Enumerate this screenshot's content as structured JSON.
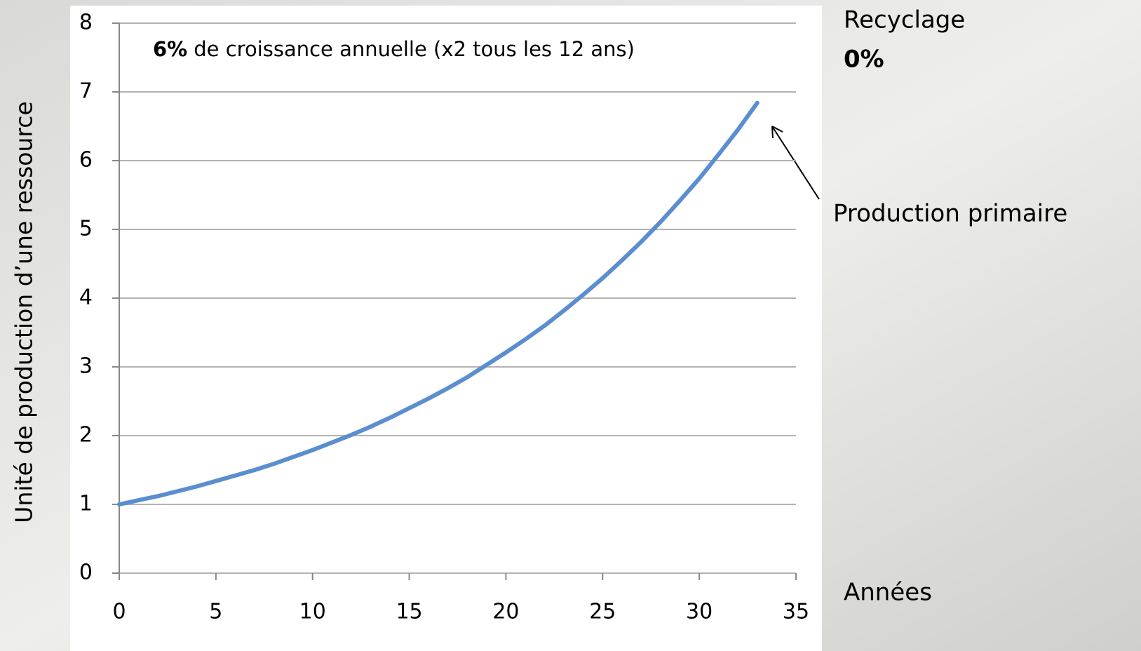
{
  "chart_data": {
    "type": "line",
    "ylabel": "Unité de production d’une ressource",
    "xlabel": "Années",
    "annotation_bold": "6%",
    "annotation": "de croissance annuelle (x2 tous les 12 ans)",
    "side_title": "Recyclage",
    "side_value": "0%",
    "side_value_color": "#4a78c2",
    "x": [
      0,
      1,
      2,
      3,
      4,
      5,
      6,
      7,
      8,
      9,
      10,
      11,
      12,
      13,
      14,
      15,
      16,
      17,
      18,
      19,
      20,
      21,
      22,
      23,
      24,
      25,
      26,
      27,
      28,
      29,
      30,
      31,
      32,
      33
    ],
    "series": [
      {
        "name": "Production primaire",
        "color": "#5b8ecf",
        "values": [
          1,
          1.06,
          1.12,
          1.19,
          1.26,
          1.34,
          1.42,
          1.5,
          1.59,
          1.69,
          1.79,
          1.9,
          2.01,
          2.13,
          2.26,
          2.4,
          2.54,
          2.69,
          2.85,
          3.03,
          3.21,
          3.4,
          3.6,
          3.82,
          4.05,
          4.29,
          4.55,
          4.82,
          5.11,
          5.42,
          5.74,
          6.09,
          6.45,
          6.84
        ]
      }
    ],
    "xlim": [
      0,
      35
    ],
    "xticks": [
      0,
      5,
      10,
      15,
      20,
      25,
      30,
      35
    ],
    "ylim": [
      0,
      8
    ],
    "yticks": [
      0,
      1,
      2,
      3,
      4,
      5,
      6,
      7,
      8
    ],
    "grid": true
  }
}
